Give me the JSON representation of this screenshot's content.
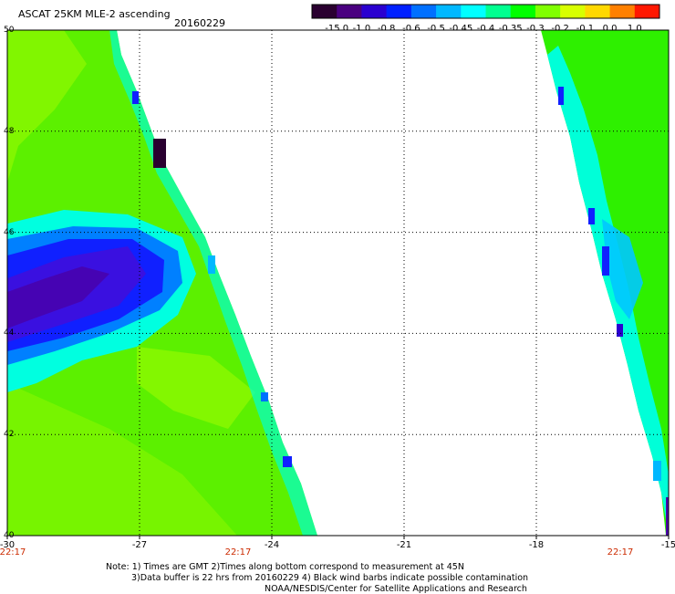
{
  "header": {
    "title": "ASCAT 25KM MLE-2 ascending",
    "date": "20160229"
  },
  "colorbar": {
    "colors": [
      "#2a0030",
      "#4a0080",
      "#2a00d0",
      "#0020ff",
      "#0070ff",
      "#00b8ff",
      "#00ffff",
      "#00ff90",
      "#00ff00",
      "#80ff00",
      "#d8ff00",
      "#ffd800",
      "#ff8000",
      "#ff1800"
    ],
    "labels": [
      "-15.0",
      "-1.0",
      "-0.8",
      "-0.6",
      "-0.5",
      "-0.45",
      "-0.4",
      "-0.35",
      "-0.3",
      "-0.2",
      "-0.1",
      "0.0",
      "1.0"
    ]
  },
  "map": {
    "lat_labels": [
      "50",
      "48",
      "46",
      "44",
      "42",
      "40"
    ],
    "lon_labels": [
      "-30",
      "-27",
      "-24",
      "-21",
      "-18",
      "-15"
    ],
    "time_labels": [
      "22:17",
      "22:17",
      "22:17"
    ],
    "lon_range": [
      -30,
      -15
    ],
    "lat_range": [
      40,
      50
    ]
  },
  "notes": {
    "line1": "Note: 1) Times are GMT 2)Times along bottom correspond to measurement at 45N",
    "line2": "3)Data buffer is 22 hrs from 20160229 4) Black wind barbs indicate possible contamination",
    "line3": "NOAA/NESDIS/Center for Satellite Applications and Research"
  }
}
